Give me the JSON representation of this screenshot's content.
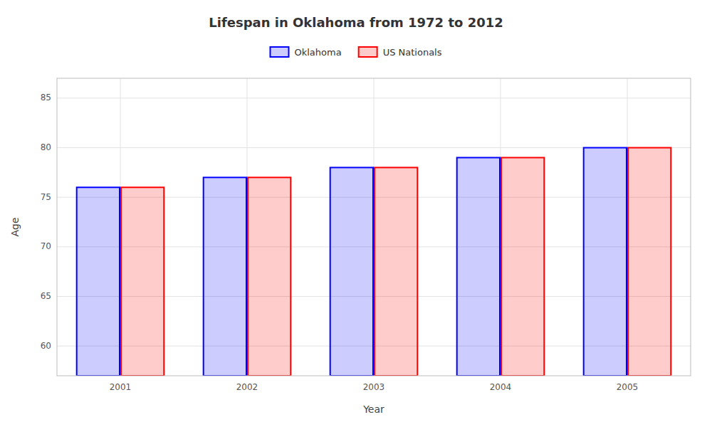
{
  "chart_data": {
    "type": "bar",
    "title": "Lifespan in Oklahoma from 1972 to 2012",
    "x_label": "Year",
    "y_label": "Age",
    "categories": [
      "2001",
      "2002",
      "2003",
      "2004",
      "2005"
    ],
    "series": [
      {
        "name": "Oklahoma",
        "color": "#0000ff",
        "values": [
          76,
          77,
          78,
          79,
          80
        ]
      },
      {
        "name": "US Nationals",
        "color": "#ff0000",
        "values": [
          76,
          77,
          78,
          79,
          80
        ]
      }
    ],
    "ylim": [
      57,
      87
    ],
    "yticks": [
      60,
      65,
      70,
      75,
      80,
      85
    ],
    "grid": true,
    "legend": "top"
  }
}
